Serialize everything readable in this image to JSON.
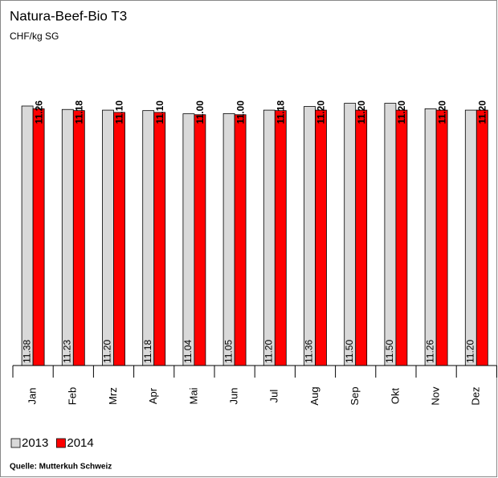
{
  "chart_data": {
    "type": "bar",
    "title": "Natura-Beef-Bio T3",
    "subtitle": "CHF/kg SG",
    "source": "Quelle: Mutterkuh Schweiz",
    "categories": [
      "Jan",
      "Feb",
      "Mrz",
      "Apr",
      "Mai",
      "Jun",
      "Jul",
      "Aug",
      "Sep",
      "Okt",
      "Nov",
      "Dez"
    ],
    "series": [
      {
        "name": "2013",
        "color": "#d9d9d9",
        "values": [
          11.38,
          11.23,
          11.2,
          11.18,
          11.04,
          11.05,
          11.2,
          11.36,
          11.5,
          11.5,
          11.26,
          11.2
        ],
        "value_labels": [
          "11.38",
          "11.23",
          "11.20",
          "11.18",
          "11.04",
          "11.05",
          "11.20",
          "11.36",
          "11.50",
          "11.50",
          "11.26",
          "11.20"
        ]
      },
      {
        "name": "2014",
        "color": "#ff0000",
        "values": [
          11.26,
          11.18,
          11.1,
          11.1,
          11.0,
          11.0,
          11.18,
          11.2,
          11.2,
          11.2,
          11.2,
          11.2
        ],
        "value_labels": [
          "11.26",
          "11.18",
          "11.10",
          "11.10",
          "11.00",
          "11.00",
          "11.18",
          "11.20",
          "11.20",
          "11.20",
          "11.20",
          "11.20"
        ]
      }
    ],
    "ylim": [
      0,
      13
    ]
  }
}
